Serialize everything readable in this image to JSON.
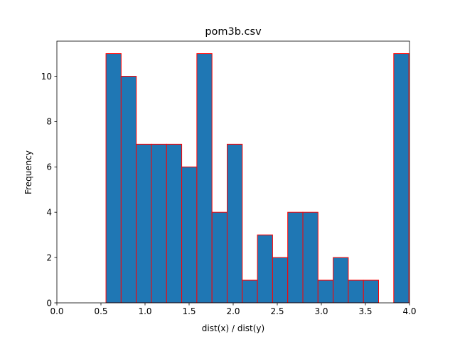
{
  "chart_data": {
    "type": "bar",
    "title": "pom3b.csv",
    "xlabel": "dist(x) / dist(y)",
    "ylabel": "Frequency",
    "xlim": [
      0.0,
      4.0
    ],
    "ylim": [
      0,
      11.55
    ],
    "xticks": [
      0.0,
      0.5,
      1.0,
      1.5,
      2.0,
      2.5,
      3.0,
      3.5,
      4.0
    ],
    "xtick_labels": [
      "0.0",
      "0.5",
      "1.0",
      "1.5",
      "2.0",
      "2.5",
      "3.0",
      "3.5",
      "4.0"
    ],
    "yticks": [
      0,
      2,
      4,
      6,
      8,
      10
    ],
    "ytick_labels": [
      "0",
      "2",
      "4",
      "6",
      "8",
      "10"
    ],
    "bin_edges": [
      0.557,
      0.7288,
      0.9006,
      1.0724,
      1.2442,
      1.416,
      1.5878,
      1.7596,
      1.9314,
      2.1032,
      2.275,
      2.4468,
      2.6186,
      2.7904,
      2.9622,
      3.134,
      3.3058,
      3.4776,
      3.6494,
      3.8212,
      3.993
    ],
    "values": [
      11,
      10,
      7,
      7,
      7,
      6,
      11,
      4,
      7,
      1,
      3,
      2,
      4,
      4,
      1,
      2,
      1,
      1,
      0,
      11
    ],
    "bar_color": "#1f77b4",
    "edge_color": "#ff0000",
    "grid": false
  }
}
